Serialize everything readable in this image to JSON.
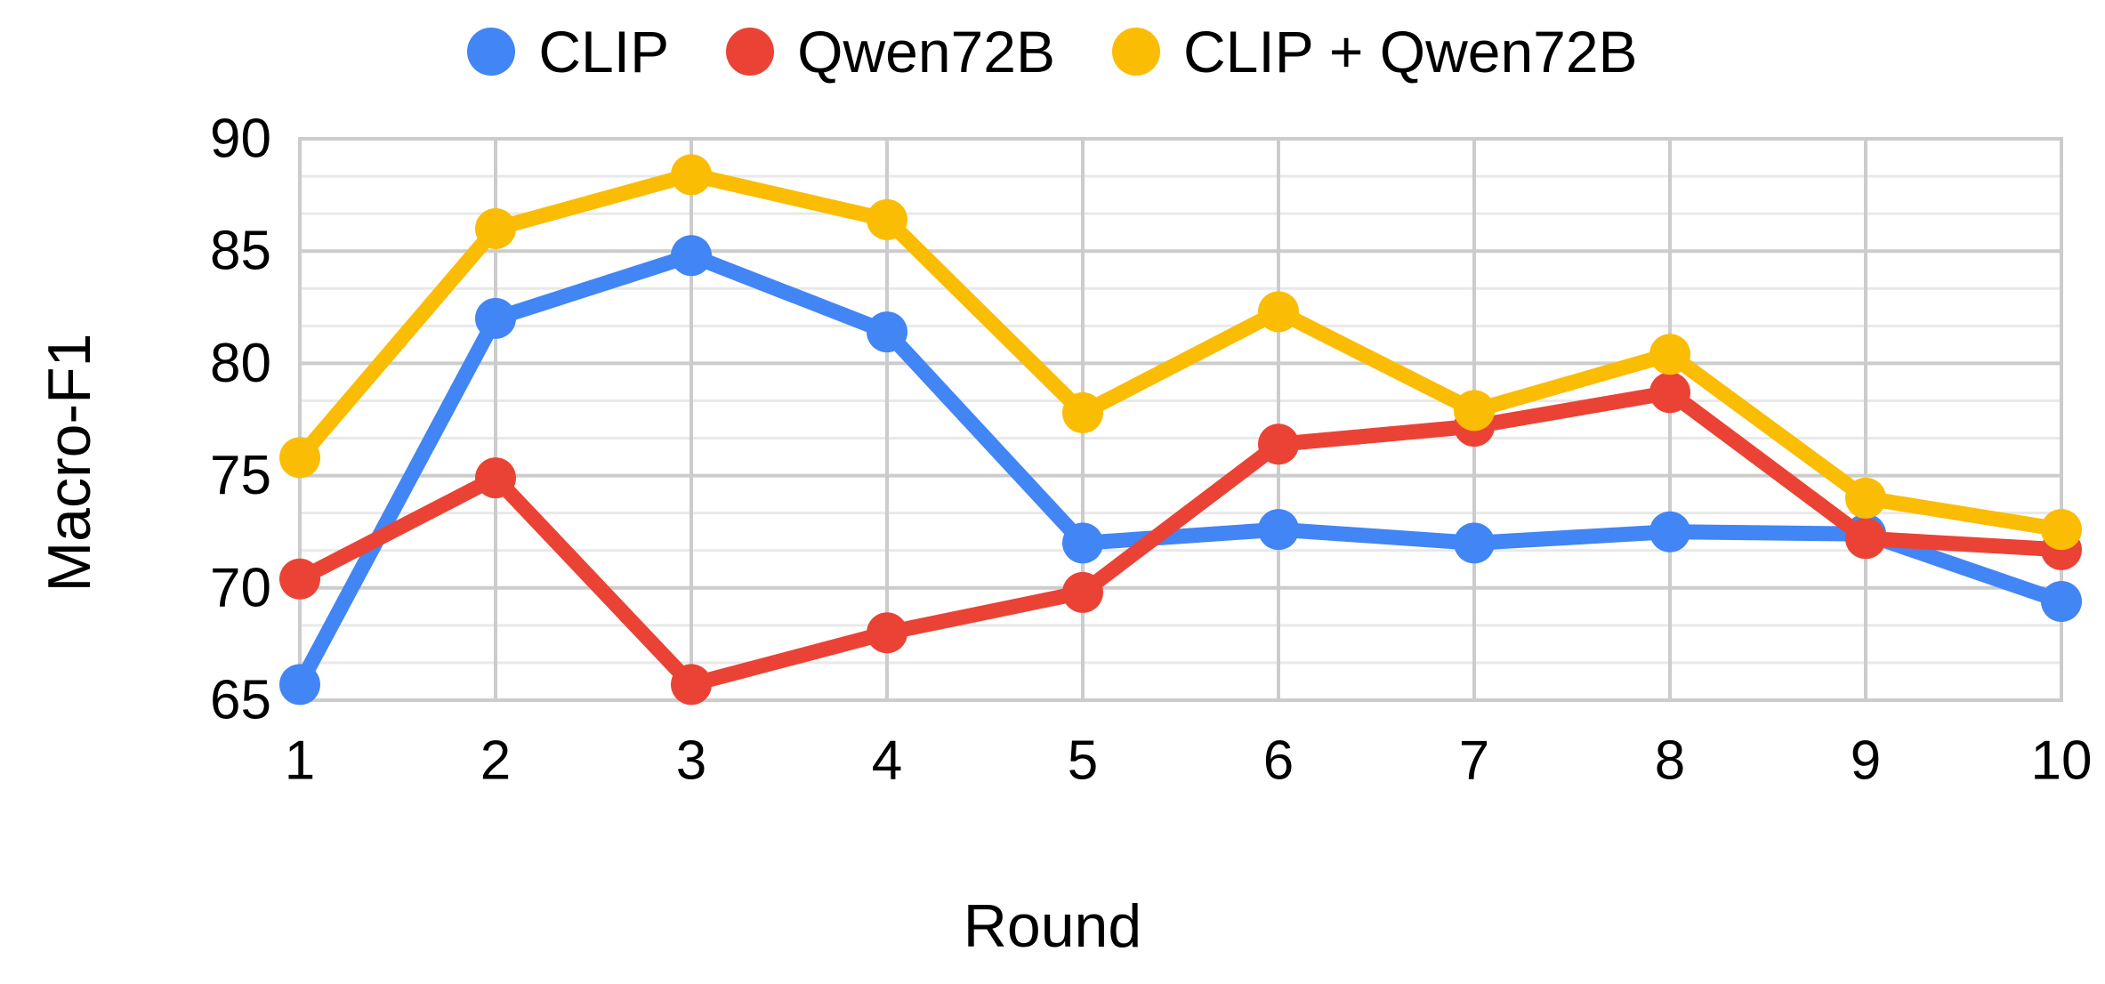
{
  "chart_data": {
    "type": "line",
    "title": "",
    "xlabel": "Round",
    "ylabel": "Macro-F1",
    "x": [
      1,
      2,
      3,
      4,
      5,
      6,
      7,
      8,
      9,
      10
    ],
    "x_ticks": [
      "1",
      "2",
      "3",
      "4",
      "5",
      "6",
      "7",
      "8",
      "9",
      "10"
    ],
    "y_ticks": [
      "65",
      "70",
      "75",
      "80",
      "85",
      "90"
    ],
    "ylim": [
      65,
      90
    ],
    "y_major_step": 5,
    "y_minor_divisions": 3,
    "grid": {
      "major_color": "#cccccc",
      "minor_color": "#e9e9e9",
      "border_color": "#cccccc",
      "background": "#ffffff"
    },
    "legend_position": "top",
    "series": [
      {
        "name": "CLIP",
        "color": "#4285F4",
        "values": [
          65.7,
          82.0,
          84.8,
          81.4,
          72.0,
          72.6,
          72.0,
          72.5,
          72.4,
          69.4
        ]
      },
      {
        "name": "Qwen72B",
        "color": "#EA4335",
        "values": [
          70.4,
          74.9,
          65.7,
          68.0,
          69.8,
          76.4,
          77.2,
          78.7,
          72.2,
          71.7
        ]
      },
      {
        "name": "CLIP + Qwen72B",
        "color": "#FBBC04",
        "values": [
          75.8,
          86.0,
          88.4,
          86.4,
          77.8,
          82.3,
          77.9,
          80.4,
          74.0,
          72.6
        ]
      }
    ],
    "text_color": "#000000"
  }
}
